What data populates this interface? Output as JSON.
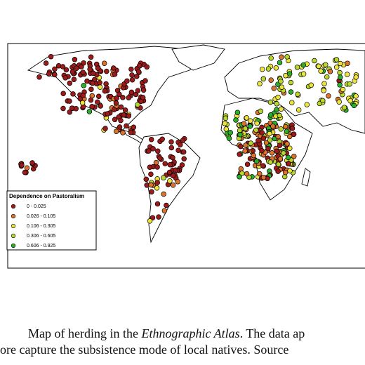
{
  "map": {
    "legend": {
      "title": "Dependence on Pastoralism",
      "items": [
        {
          "label": "0 - 0.025",
          "color": "#9c1a1a"
        },
        {
          "label": "0.026 - 0.105",
          "color": "#d9732e"
        },
        {
          "label": "0.106 - 0.305",
          "color": "#ece43c"
        },
        {
          "label": "0.306 - 0.605",
          "color": "#b9d62c"
        },
        {
          "label": "0.606 - 0.925",
          "color": "#2bb02b"
        }
      ]
    },
    "caption": {
      "line1": {
        "before": "Map of herding in the ",
        "italic": "Ethnographic Atlas",
        "after": ".  The data ap"
      },
      "line2": "ore capture the subsistence mode of local natives. Source"
    }
  }
}
